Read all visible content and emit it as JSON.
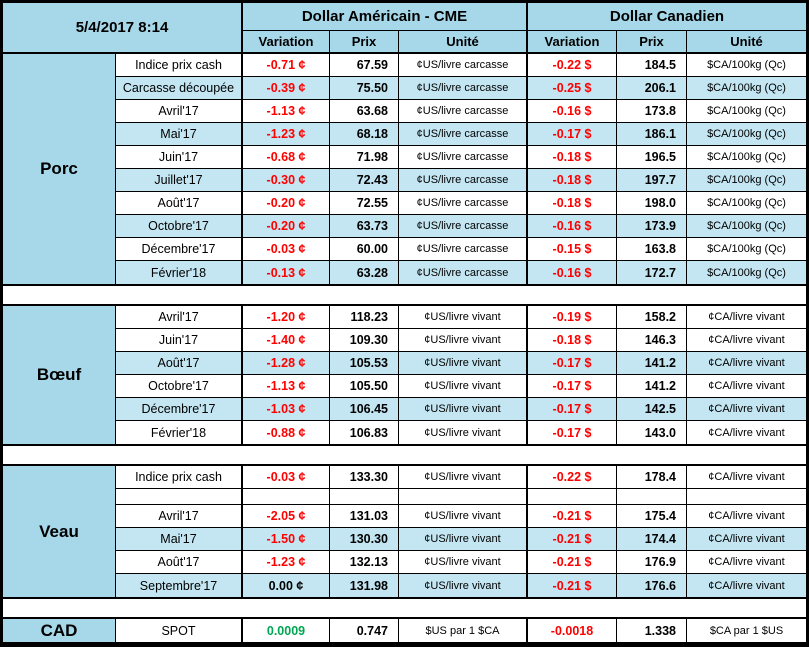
{
  "meta": {
    "timestamp": "5/4/2017 8:14"
  },
  "header": {
    "usd_title": "Dollar Américain - CME",
    "cad_title": "Dollar Canadien",
    "sub_columns": [
      "Variation",
      "Prix",
      "Unité"
    ]
  },
  "colors": {
    "header_bg": "#A6D8E9",
    "band_bg": "#C3E6F2",
    "negative": "#FF0000",
    "positive": "#00A651"
  },
  "sections": [
    {
      "id": "porc",
      "label": "Porc",
      "rows": [
        {
          "label": "Indice prix cash",
          "usd_var": "-0.71 ¢",
          "usd_price": "67.59",
          "usd_unit": "¢US/livre carcasse",
          "cad_var": "-0.22 $",
          "cad_price": "184.5",
          "cad_unit": "$CA/100kg (Qc)",
          "shaded": false
        },
        {
          "label": "Carcasse découpée",
          "usd_var": "-0.39 ¢",
          "usd_price": "75.50",
          "usd_unit": "¢US/livre carcasse",
          "cad_var": "-0.25 $",
          "cad_price": "206.1",
          "cad_unit": "$CA/100kg (Qc)",
          "shaded": true
        },
        {
          "label": "Avril'17",
          "usd_var": "-1.13 ¢",
          "usd_price": "63.68",
          "usd_unit": "¢US/livre carcasse",
          "cad_var": "-0.16 $",
          "cad_price": "173.8",
          "cad_unit": "$CA/100kg (Qc)",
          "shaded": false
        },
        {
          "label": "Mai'17",
          "usd_var": "-1.23 ¢",
          "usd_price": "68.18",
          "usd_unit": "¢US/livre carcasse",
          "cad_var": "-0.17 $",
          "cad_price": "186.1",
          "cad_unit": "$CA/100kg (Qc)",
          "shaded": true
        },
        {
          "label": "Juin'17",
          "usd_var": "-0.68 ¢",
          "usd_price": "71.98",
          "usd_unit": "¢US/livre carcasse",
          "cad_var": "-0.18 $",
          "cad_price": "196.5",
          "cad_unit": "$CA/100kg (Qc)",
          "shaded": false
        },
        {
          "label": "Juillet'17",
          "usd_var": "-0.30 ¢",
          "usd_price": "72.43",
          "usd_unit": "¢US/livre carcasse",
          "cad_var": "-0.18 $",
          "cad_price": "197.7",
          "cad_unit": "$CA/100kg (Qc)",
          "shaded": true
        },
        {
          "label": "Août'17",
          "usd_var": "-0.20 ¢",
          "usd_price": "72.55",
          "usd_unit": "¢US/livre carcasse",
          "cad_var": "-0.18 $",
          "cad_price": "198.0",
          "cad_unit": "$CA/100kg (Qc)",
          "shaded": false
        },
        {
          "label": "Octobre'17",
          "usd_var": "-0.20 ¢",
          "usd_price": "63.73",
          "usd_unit": "¢US/livre carcasse",
          "cad_var": "-0.16 $",
          "cad_price": "173.9",
          "cad_unit": "$CA/100kg (Qc)",
          "shaded": true
        },
        {
          "label": "Décembre'17",
          "usd_var": "-0.03 ¢",
          "usd_price": "60.00",
          "usd_unit": "¢US/livre carcasse",
          "cad_var": "-0.15 $",
          "cad_price": "163.8",
          "cad_unit": "$CA/100kg (Qc)",
          "shaded": false
        },
        {
          "label": "Février'18",
          "usd_var": "-0.13 ¢",
          "usd_price": "63.28",
          "usd_unit": "¢US/livre carcasse",
          "cad_var": "-0.16 $",
          "cad_price": "172.7",
          "cad_unit": "$CA/100kg (Qc)",
          "shaded": true
        }
      ]
    },
    {
      "id": "boeuf",
      "label": "Bœuf",
      "rows": [
        {
          "label": "Avril'17",
          "usd_var": "-1.20 ¢",
          "usd_price": "118.23",
          "usd_unit": "¢US/livre vivant",
          "cad_var": "-0.19 $",
          "cad_price": "158.2",
          "cad_unit": "¢CA/livre vivant",
          "shaded": false
        },
        {
          "label": "Juin'17",
          "usd_var": "-1.40 ¢",
          "usd_price": "109.30",
          "usd_unit": "¢US/livre vivant",
          "cad_var": "-0.18 $",
          "cad_price": "146.3",
          "cad_unit": "¢CA/livre vivant",
          "shaded": false
        },
        {
          "label": "Août'17",
          "usd_var": "-1.28 ¢",
          "usd_price": "105.53",
          "usd_unit": "¢US/livre vivant",
          "cad_var": "-0.17 $",
          "cad_price": "141.2",
          "cad_unit": "¢CA/livre vivant",
          "shaded": true
        },
        {
          "label": "Octobre'17",
          "usd_var": "-1.13 ¢",
          "usd_price": "105.50",
          "usd_unit": "¢US/livre vivant",
          "cad_var": "-0.17 $",
          "cad_price": "141.2",
          "cad_unit": "¢CA/livre vivant",
          "shaded": false
        },
        {
          "label": "Décembre'17",
          "usd_var": "-1.03 ¢",
          "usd_price": "106.45",
          "usd_unit": "¢US/livre vivant",
          "cad_var": "-0.17 $",
          "cad_price": "142.5",
          "cad_unit": "¢CA/livre vivant",
          "shaded": true
        },
        {
          "label": "Février'18",
          "usd_var": "-0.88 ¢",
          "usd_price": "106.83",
          "usd_unit": "¢US/livre vivant",
          "cad_var": "-0.17 $",
          "cad_price": "143.0",
          "cad_unit": "¢CA/livre vivant",
          "shaded": false
        }
      ]
    },
    {
      "id": "veau",
      "label": "Veau",
      "rows": [
        {
          "label": "Indice prix cash",
          "usd_var": "-0.03 ¢",
          "usd_price": "133.30",
          "usd_unit": "¢US/livre vivant",
          "cad_var": "-0.22 $",
          "cad_price": "178.4",
          "cad_unit": "¢CA/livre vivant",
          "shaded": false
        },
        {
          "label": "",
          "usd_var": "",
          "usd_price": "",
          "usd_unit": "",
          "cad_var": "",
          "cad_price": "",
          "cad_unit": "",
          "shaded": false,
          "h": 16,
          "spacer": true
        },
        {
          "label": "Avril'17",
          "usd_var": "-2.05 ¢",
          "usd_price": "131.03",
          "usd_unit": "¢US/livre vivant",
          "cad_var": "-0.21 $",
          "cad_price": "175.4",
          "cad_unit": "¢CA/livre vivant",
          "shaded": false
        },
        {
          "label": "Mai'17",
          "usd_var": "-1.50 ¢",
          "usd_price": "130.30",
          "usd_unit": "¢US/livre vivant",
          "cad_var": "-0.21 $",
          "cad_price": "174.4",
          "cad_unit": "¢CA/livre vivant",
          "shaded": true
        },
        {
          "label": "Août'17",
          "usd_var": "-1.23 ¢",
          "usd_price": "132.13",
          "usd_unit": "¢US/livre vivant",
          "cad_var": "-0.21 $",
          "cad_price": "176.9",
          "cad_unit": "¢CA/livre vivant",
          "shaded": false
        },
        {
          "label": "Septembre'17",
          "usd_var": "0.00 ¢",
          "usd_tone": "neutral",
          "usd_price": "131.98",
          "usd_unit": "¢US/livre vivant",
          "cad_var": "-0.21 $",
          "cad_price": "176.6",
          "cad_unit": "¢CA/livre vivant",
          "shaded": true
        }
      ]
    },
    {
      "id": "cad",
      "label": "CAD",
      "rows": [
        {
          "label": "SPOT",
          "usd_var": "0.0009",
          "usd_tone": "positive",
          "usd_price": "0.747",
          "usd_unit": "$US par 1 $CA",
          "cad_var": "-0.0018",
          "cad_tone": "negative",
          "cad_price": "1.338",
          "cad_unit": "$CA par 1 $US",
          "shaded": false
        }
      ]
    }
  ]
}
